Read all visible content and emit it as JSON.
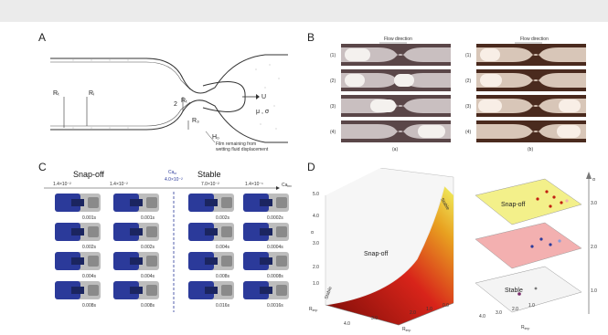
{
  "panels": {
    "a": "A",
    "b": "B",
    "c": "C",
    "d": "D"
  },
  "panel_a": {
    "labels": {
      "r_t": "Rₜ",
      "r_i": "Rᵢ",
      "r_2": "2",
      "r_t_neck": "Rₜ",
      "r_3": "R₃",
      "u": "U",
      "mu_sigma": "μ , σ",
      "h0": "H₀"
    },
    "note_line1": "Film remaining from",
    "note_line2": "wetting fluid displacement"
  },
  "panel_b": {
    "flow_label": "Flow direction",
    "rows": [
      "(1)",
      "(2)",
      "(3)",
      "(4)"
    ],
    "col_a": "(a)",
    "col_b": "(b)"
  },
  "panel_c": {
    "snap_off": "Snap-off",
    "stable": "Stable",
    "ca_label": "Ca",
    "ca_sub": "cr",
    "ca_value": "4.0×10⁻²",
    "ca_inv": "Ca",
    "ca_inv_sub": "inv",
    "ca_values": [
      "1.4×10⁻²",
      "1.4×10⁻²",
      "7.0×10⁻²",
      "1.4×10⁻¹"
    ],
    "times": [
      [
        "0.001s",
        "0.001s",
        "0.002s",
        "0.0002s"
      ],
      [
        "0.002s",
        "0.002s",
        "0.004s",
        "0.0004s"
      ],
      [
        "0.004s",
        "0.004s",
        "0.008s",
        "0.0008s"
      ],
      [
        "0.008s",
        "0.008s",
        "0.016s",
        "0.0016s"
      ]
    ]
  },
  "panel_d": {
    "alpha": "α",
    "alpha_ticks": [
      "1.0",
      "2.0",
      "3.0",
      "4.0",
      "5.0"
    ],
    "snap_off": "Snap-off",
    "stable": "Stable",
    "r_label": "R",
    "r_sub": "imp",
    "r_ticks": [
      "4.0",
      "3.0",
      "2.0",
      "1.0",
      "0.0"
    ],
    "right_alpha_ticks": [
      "3.0",
      "2.0",
      "1.0"
    ],
    "right_r_ticks": [
      "4.0",
      "3.0",
      "2.0",
      "1.0"
    ]
  },
  "colors": {
    "bubble_blue": "#2b3a9a",
    "snapoff_yellow": "#f3f08a",
    "mid_pink": "#f3b0b0",
    "surface_red": "#c21f10",
    "surface_yellow": "#f0f060"
  }
}
